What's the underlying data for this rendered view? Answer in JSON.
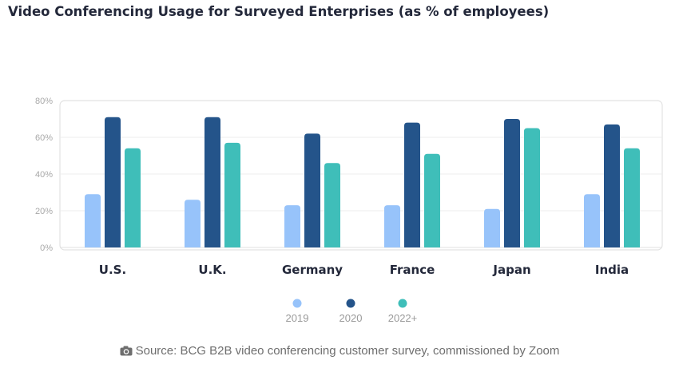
{
  "title": "Video Conferencing Usage for Surveyed Enterprises (as % of employees)",
  "source": {
    "icon": "camera-icon",
    "text": "Source: BCG B2B video conferencing customer survey, commissioned by Zoom"
  },
  "colors": {
    "2019": "#97c3fa",
    "2020": "#24548a",
    "2022+": "#3fbeb9",
    "grid": "#ececec",
    "tick": "#a8a8a8",
    "category_label": "#23283a",
    "legend_label": "#9a9a9a"
  },
  "chart_data": {
    "type": "bar",
    "title": "Video Conferencing Usage for Surveyed Enterprises (as % of employees)",
    "categories": [
      "U.S.",
      "U.K.",
      "Germany",
      "France",
      "Japan",
      "India"
    ],
    "series": [
      {
        "name": "2019",
        "values": [
          29,
          26,
          23,
          23,
          21,
          29
        ]
      },
      {
        "name": "2020",
        "values": [
          71,
          71,
          62,
          68,
          70,
          67
        ]
      },
      {
        "name": "2022+",
        "values": [
          54,
          57,
          46,
          51,
          65,
          54
        ]
      }
    ],
    "ylim": [
      0,
      80
    ],
    "yticks": [
      "0%",
      "20%",
      "40%",
      "60%",
      "80%"
    ],
    "xlabel": "",
    "ylabel": "",
    "grid": true,
    "legend": "bottom-center"
  }
}
